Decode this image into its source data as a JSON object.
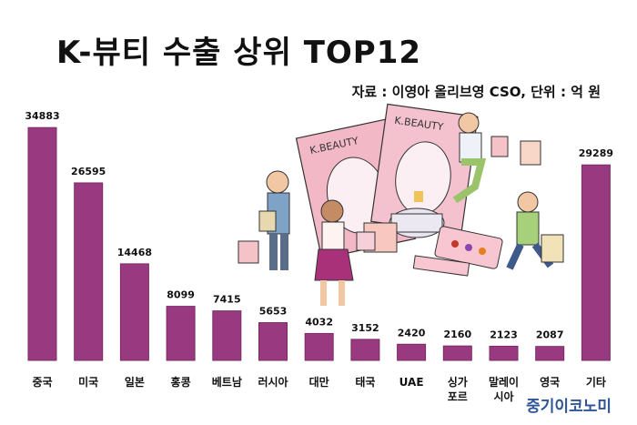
{
  "header": {
    "title": "K-뷰티 수출 상위 TOP12",
    "source": "자료 : 이영아 올리브영 CSO, 단위 : 억 원"
  },
  "watermark": "중기이코노미",
  "colors": {
    "bar": "#993a80",
    "bar_edge": "#7a2b66"
  },
  "chart_data": {
    "type": "bar",
    "title": "K-뷰티 수출 상위 TOP12",
    "xlabel": "",
    "ylabel": "",
    "unit": "억 원",
    "categories": [
      "중국",
      "미국",
      "일본",
      "홍콩",
      "베트남",
      "러시아",
      "대만",
      "태국",
      "UAE",
      "싱가\n포르",
      "말레이\n시아",
      "영국",
      "기타"
    ],
    "values": [
      34883,
      26595,
      14468,
      8099,
      7415,
      5653,
      4032,
      3152,
      2420,
      2160,
      2123,
      2087,
      29289
    ],
    "data_labels": [
      "34883",
      "26595",
      "14468",
      "8099",
      "7415",
      "5653",
      "4032",
      "3152",
      "2420",
      "2160",
      "2123",
      "2087",
      "29289"
    ],
    "ylim": [
      0,
      36000
    ],
    "grid": false,
    "legend": "none"
  }
}
